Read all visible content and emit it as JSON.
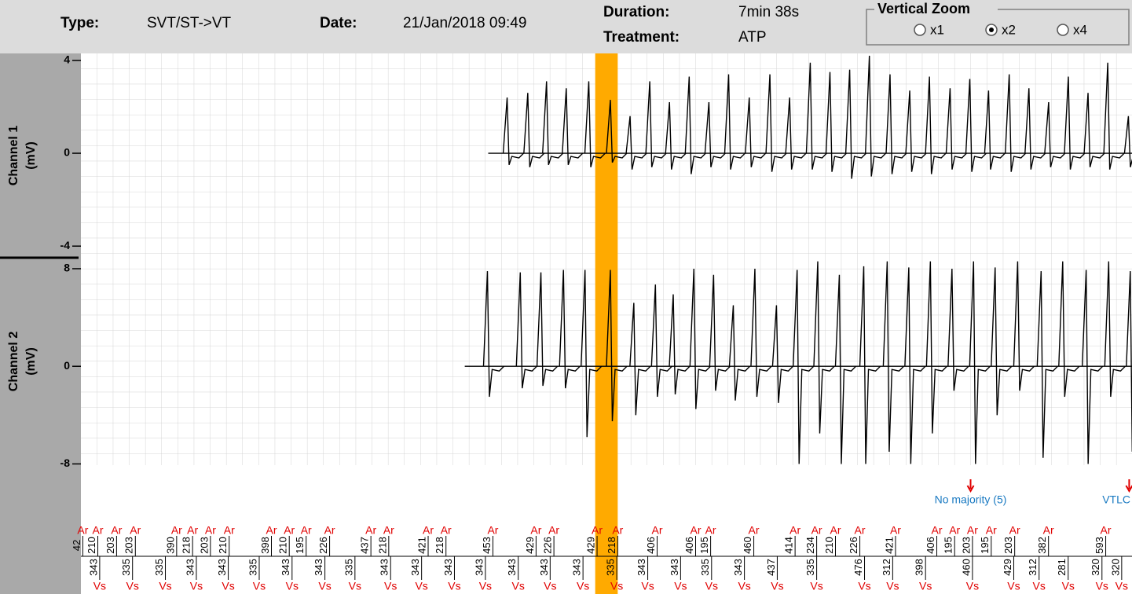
{
  "header": {
    "type_label": "Type:",
    "type": "SVT/ST->VT",
    "date_label": "Date:",
    "date": "21/Jan/2018 09:49",
    "duration_label": "Duration:",
    "duration": "7min 38s",
    "treatment_label": "Treatment:",
    "treatment": "ATP"
  },
  "zoom": {
    "title": "Vertical Zoom",
    "options": [
      "x1",
      "x2",
      "x4"
    ],
    "selected": 1
  },
  "cursor": {
    "x": [
      5480,
      5720
    ],
    "color": "#ffaa00"
  },
  "chart_data": [
    {
      "type": "line",
      "ylabel": "Channel 1",
      "yunit": "(mV)",
      "xlim": [
        0,
        11200
      ],
      "ylim": [
        -4.5,
        4.3
      ],
      "yticks": [
        4,
        0,
        -4
      ],
      "grid": true,
      "start": 4340,
      "color": "#000000",
      "x": [
        4550,
        4770,
        4970,
        5180,
        5420,
        5650,
        5860,
        6070,
        6280,
        6490,
        6700,
        6910,
        7130,
        7350,
        7560,
        7780,
        7990,
        8200,
        8410,
        8630,
        8840,
        9050,
        9270,
        9480,
        9680,
        9900,
        10110,
        10320,
        10530,
        10740,
        10950,
        11170
      ],
      "values": [
        2.4,
        2.6,
        3.1,
        2.8,
        3.1,
        2.3,
        1.6,
        3.1,
        2.2,
        3.3,
        2.2,
        3.4,
        2.4,
        3.4,
        2.4,
        3.9,
        3.5,
        3.6,
        4.2,
        3.4,
        2.7,
        3.3,
        2.8,
        3.2,
        2.7,
        3.4,
        2.8,
        2.2,
        3.3,
        2.6,
        3.9,
        1.6
      ],
      "lows": [
        -0.5,
        -0.6,
        -0.5,
        -0.5,
        -0.6,
        -0.4,
        -0.7,
        -0.6,
        -0.7,
        -0.9,
        -0.6,
        -0.7,
        -0.6,
        -0.8,
        -0.7,
        -0.7,
        -0.8,
        -1.1,
        -1.0,
        -0.9,
        -0.8,
        -0.9,
        -0.7,
        -0.8,
        -0.7,
        -0.8,
        -0.7,
        -0.6,
        -0.7,
        -0.6,
        -0.7,
        -0.6
      ]
    },
    {
      "type": "line",
      "ylabel": "Channel 2",
      "yunit": "(mV)",
      "xlim": [
        0,
        11200
      ],
      "ylim": [
        -8.1,
        8.9
      ],
      "yticks": [
        8,
        0,
        -8
      ],
      "grid": true,
      "start": 4090,
      "color": "#000000",
      "x": [
        4340,
        4690,
        4910,
        5150,
        5380,
        5650,
        5900,
        6130,
        6320,
        6540,
        6750,
        6960,
        7190,
        7420,
        7640,
        7860,
        8090,
        8350,
        8600,
        8830,
        9060,
        9290,
        9520,
        9750,
        9990,
        10240,
        10470,
        10720,
        10960,
        11190
      ],
      "values": [
        7.8,
        7.7,
        7.7,
        7.9,
        7.9,
        7.9,
        5.2,
        6.7,
        5.9,
        8.0,
        7.5,
        5.0,
        8.0,
        5.0,
        7.9,
        8.6,
        7.5,
        8.2,
        8.6,
        8.1,
        8.6,
        8.0,
        8.6,
        8.1,
        8.6,
        7.8,
        8.6,
        7.9,
        8.6,
        7.8
      ],
      "lows": [
        -2.5,
        -1.8,
        -1.6,
        -1.8,
        -5.8,
        -4.5,
        -4.0,
        -2.5,
        -2.3,
        -3.5,
        -2.0,
        -2.8,
        -2.5,
        -3.0,
        -8.0,
        -5.5,
        -8.0,
        -8.0,
        -7.0,
        -8.0,
        -5.5,
        -2.0,
        -8.0,
        -4.0,
        -2.0,
        -7.5,
        -2.5,
        -8.0,
        -2.5,
        -7.0
      ]
    }
  ],
  "markers": {
    "xlim": [
      0,
      11200
    ],
    "atrial": {
      "label": "Ar",
      "x": [
        20,
        180,
        380,
        580,
        1020,
        1190,
        1380,
        1580,
        2030,
        2220,
        2400,
        2650,
        3090,
        3280,
        3700,
        3890,
        4390,
        4850,
        5040,
        5500,
        5720,
        6140,
        6550,
        6710,
        7170,
        7610,
        7840,
        8040,
        8300,
        8680,
        9120,
        9310,
        9500,
        9700,
        9950,
        10310,
        10920
      ],
      "intervals": [
        "42",
        "210",
        "203",
        "203",
        "390",
        "218",
        "203",
        "210",
        "398",
        "210",
        "195",
        "226",
        "437",
        "218",
        "421",
        "218",
        "453",
        "429",
        "226",
        "429",
        "218",
        "406",
        "406",
        "195",
        "460",
        "414",
        "234",
        "210",
        "226",
        "421",
        "406",
        "195",
        "203",
        "195",
        "203",
        "382",
        "593"
      ]
    },
    "ventricular": {
      "label": "Vs",
      "x": [
        200,
        550,
        900,
        1230,
        1570,
        1900,
        2250,
        2600,
        2920,
        3300,
        3630,
        3980,
        4310,
        4660,
        5000,
        5350,
        5710,
        6040,
        6390,
        6720,
        7070,
        7420,
        7840,
        8350,
        8650,
        9000,
        9500,
        9940,
        10210,
        10520,
        10880,
        11090
      ],
      "intervals": [
        "343",
        "335",
        "335",
        "343",
        "343",
        "335",
        "343",
        "343",
        "335",
        "343",
        "343",
        "343",
        "343",
        "343",
        "343",
        "343",
        "335",
        "343",
        "343",
        "335",
        "343",
        "437",
        "335",
        "476",
        "312",
        "398",
        "460",
        "429",
        "312",
        "281",
        "320",
        "320"
      ]
    },
    "annotations": [
      {
        "x": 9480,
        "text": "No majority (5)"
      },
      {
        "x": 11170,
        "text": "VTLC"
      }
    ]
  }
}
